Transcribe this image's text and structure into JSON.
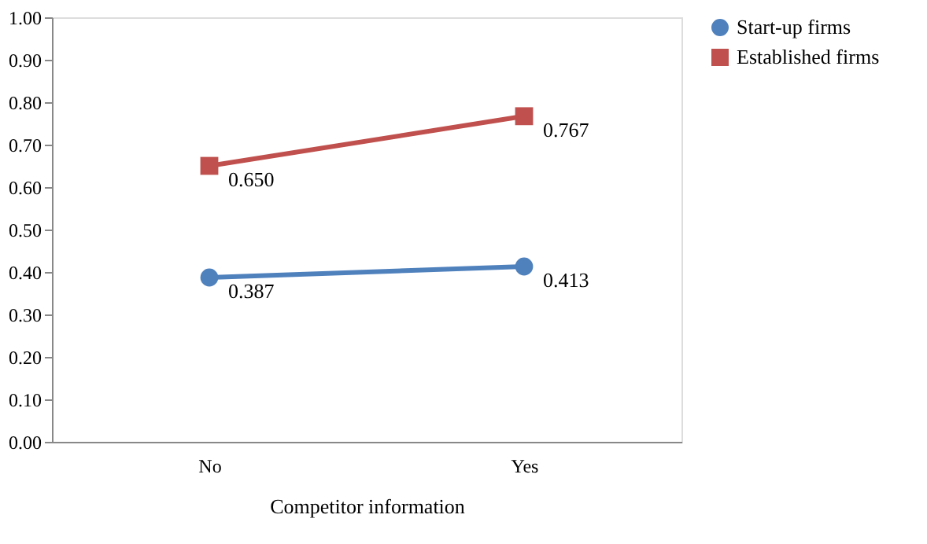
{
  "chart_data": {
    "type": "line",
    "xlabel": "Competitor information",
    "categories": [
      "No",
      "Yes"
    ],
    "series": [
      {
        "name": "Start-up firms",
        "color": "#4f81bd",
        "marker": "circle",
        "values": [
          0.387,
          0.413
        ],
        "value_labels": [
          "0.387",
          "0.413"
        ]
      },
      {
        "name": "Established firms",
        "color": "#c0504d",
        "marker": "square",
        "values": [
          0.65,
          0.767
        ],
        "value_labels": [
          "0.650",
          "0.767"
        ]
      }
    ],
    "ylim": [
      0,
      1
    ],
    "yticks": [
      {
        "value": 0,
        "label": "0.00"
      },
      {
        "value": 0.1,
        "label": "0.10"
      },
      {
        "value": 0.2,
        "label": "0.20"
      },
      {
        "value": 0.3,
        "label": "0.30"
      },
      {
        "value": 0.4,
        "label": "0.40"
      },
      {
        "value": 0.5,
        "label": "0.50"
      },
      {
        "value": 0.6,
        "label": "0.60"
      },
      {
        "value": 0.7,
        "label": "0.70"
      },
      {
        "value": 0.8,
        "label": "0.80"
      },
      {
        "value": 0.9,
        "label": "0.90"
      },
      {
        "value": 1,
        "label": "1.00"
      }
    ],
    "grid": false,
    "legend": "right",
    "line_style": "solid"
  }
}
